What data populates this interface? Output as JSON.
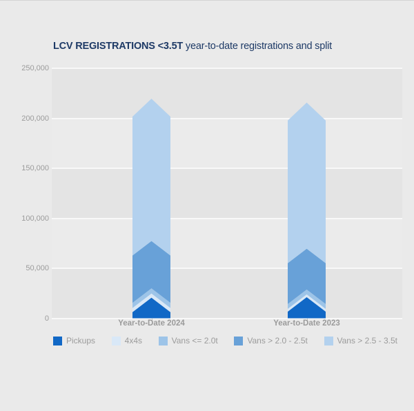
{
  "page": {
    "colors": {
      "background": "#eaeaea",
      "band_dark": "#e4e4e4",
      "band_light": "#ebebeb",
      "gridline": "#f8f8f8",
      "title_text": "#1e3a66",
      "axis_text": "#9b9b9b",
      "tick_mark": "#c4c4c4"
    }
  },
  "chart_data": {
    "type": "bar",
    "subtype": "stacked-chevron-vertical",
    "title_bold": "LCV REGISTRATIONS <3.5T",
    "title_rest": " year-to-date registrations and split",
    "categories": [
      "Year-to-Date 2024",
      "Year-to-Date 2023"
    ],
    "series": [
      {
        "name": "Pickups",
        "color": "#1168c6",
        "values": [
          20600,
          21100
        ]
      },
      {
        "name": "4x4s",
        "color": "#d9e8f7",
        "values": [
          4100,
          2800
        ]
      },
      {
        "name": "Vans <= 2.0t",
        "color": "#9dc4e8",
        "values": [
          5200,
          4800
        ]
      },
      {
        "name": "Vans > 2.0 - 2.5t",
        "color": "#68a1d8",
        "values": [
          47300,
          40900
        ]
      },
      {
        "name": "Vans > 2.5 - 3.5t",
        "color": "#b3d1ee",
        "values": [
          142400,
          146100
        ]
      }
    ],
    "totals": [
      219600,
      215700
    ],
    "ylim": [
      0,
      250000
    ],
    "yticks": [
      {
        "value": 0,
        "label": "0"
      },
      {
        "value": 50000,
        "label": "50,000"
      },
      {
        "value": 100000,
        "label": "100,000"
      },
      {
        "value": 150000,
        "label": "150,000"
      },
      {
        "value": 200000,
        "label": "200,000"
      },
      {
        "value": 250000,
        "label": "250,000"
      }
    ],
    "grid": true,
    "legend_position": "bottom"
  }
}
